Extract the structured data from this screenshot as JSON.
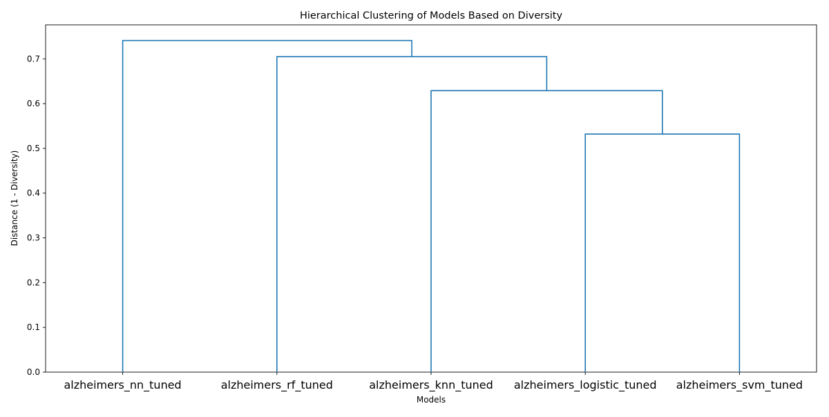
{
  "chart_data": {
    "type": "dendrogram",
    "title": "Hierarchical Clustering of Models Based on Diversity",
    "xlabel": "Models",
    "ylabel": "Distance (1 - Diversity)",
    "ylim": [
      0,
      0.776
    ],
    "yticks": [
      "0.0",
      "0.1",
      "0.2",
      "0.3",
      "0.4",
      "0.5",
      "0.6",
      "0.7"
    ],
    "ytick_values": [
      0.0,
      0.1,
      0.2,
      0.3,
      0.4,
      0.5,
      0.6,
      0.7
    ],
    "grid": false,
    "line_color": "#1f77b4",
    "leaves": [
      "alzheimers_nn_tuned",
      "alzheimers_rf_tuned",
      "alzheimers_knn_tuned",
      "alzheimers_logistic_tuned",
      "alzheimers_svm_tuned"
    ],
    "merges": [
      {
        "left": "leaf:3",
        "right": "leaf:4",
        "height": 0.532
      },
      {
        "left": "leaf:2",
        "right": "node:0",
        "height": 0.629
      },
      {
        "left": "leaf:1",
        "right": "node:1",
        "height": 0.705
      },
      {
        "left": "leaf:0",
        "right": "node:2",
        "height": 0.741
      }
    ]
  }
}
